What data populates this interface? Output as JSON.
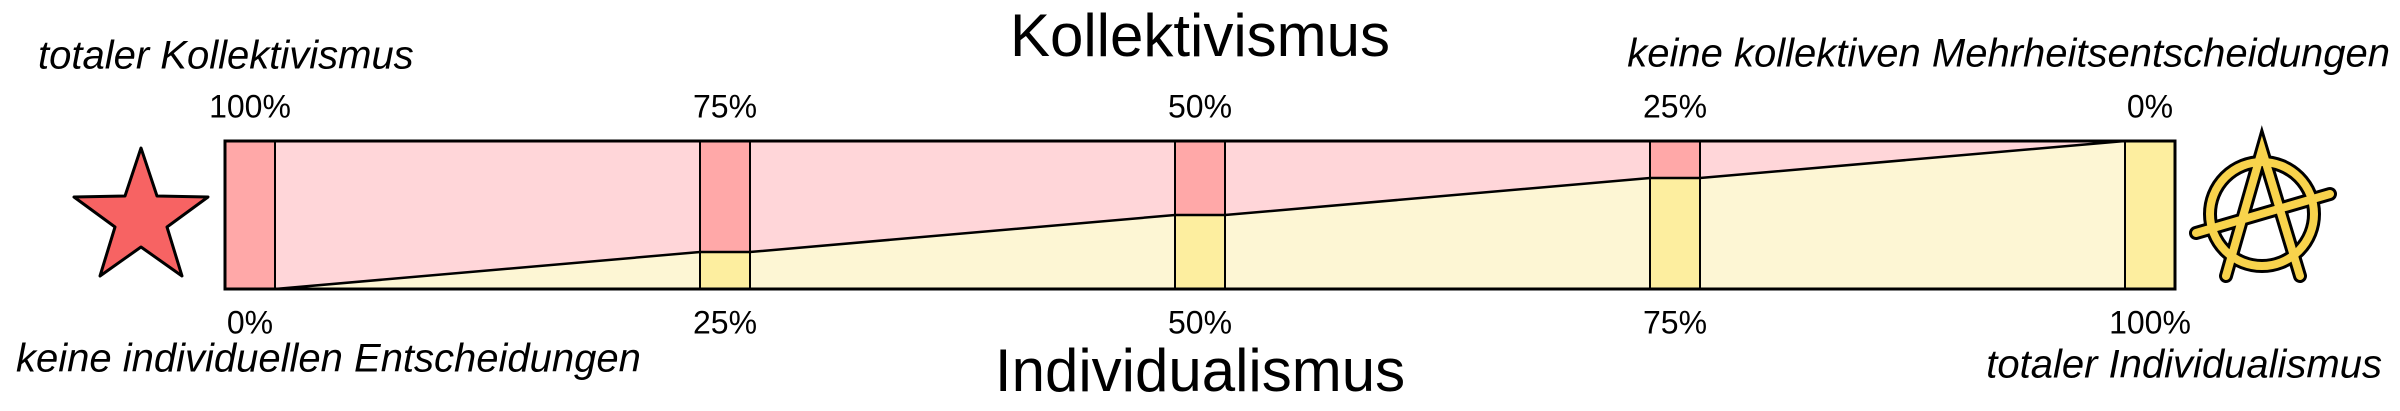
{
  "title_top": "Kollektivismus",
  "title_bottom": "Individualismus",
  "labels": {
    "top_left": "totaler Kollektivismus",
    "top_right": "keine kollektiven Mehrheitsentscheidungen",
    "bottom_left": "keine individuellen Entscheidungen",
    "bottom_right": "totaler Individualismus"
  },
  "top_ticks": [
    "100%",
    "75%",
    "50%",
    "25%",
    "0%"
  ],
  "bottom_ticks": [
    "0%",
    "25%",
    "50%",
    "75%",
    "100%"
  ]
}
